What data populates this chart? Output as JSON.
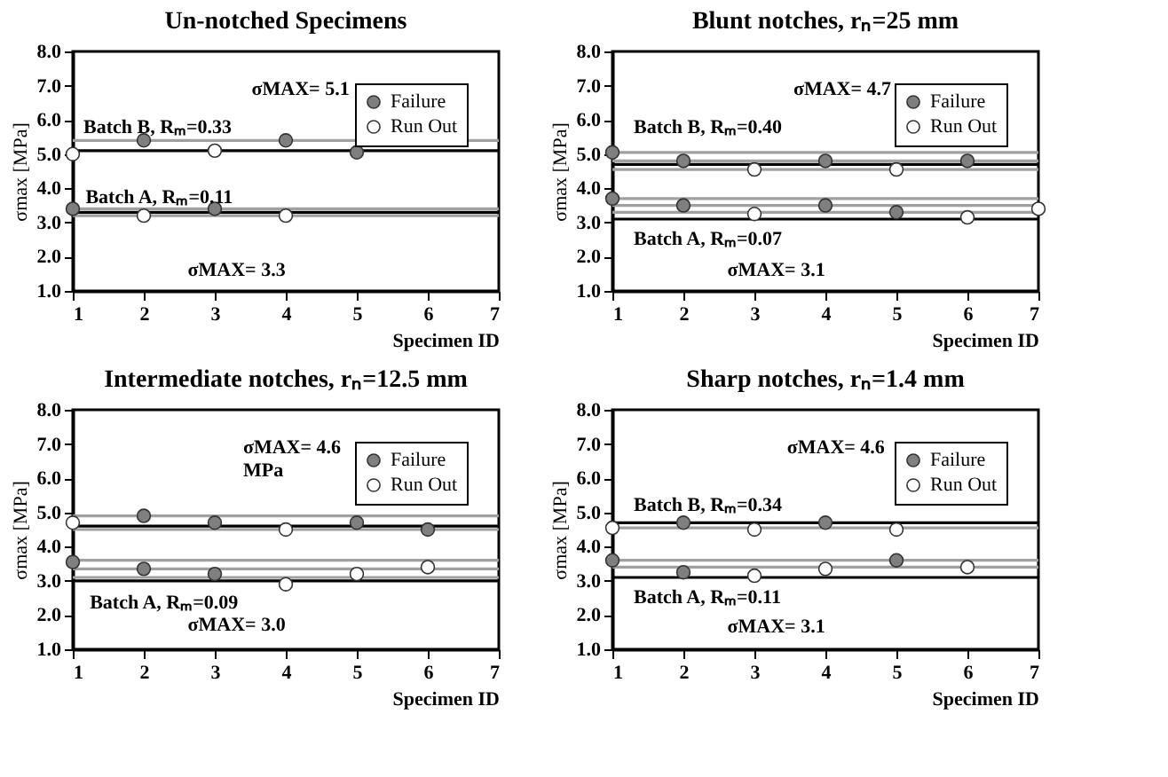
{
  "chart_data": [
    {
      "type": "scatter",
      "title": "Un-notched Specimens",
      "xlabel": "Specimen ID",
      "ylabel": "σmax [MPa]",
      "xlim": [
        1,
        7
      ],
      "xticks": [
        1,
        2,
        3,
        4,
        5,
        6,
        7
      ],
      "ylim": [
        1,
        8
      ],
      "yticks": [
        {
          "value": 1,
          "label": "1.0"
        },
        {
          "value": 2,
          "label": "2.0"
        },
        {
          "value": 3,
          "label": "3.0"
        },
        {
          "value": 4,
          "label": "4.0"
        },
        {
          "value": 5,
          "label": "5.0"
        },
        {
          "value": 6,
          "label": "6.0"
        },
        {
          "value": 7,
          "label": "7.0"
        },
        {
          "value": 8,
          "label": "8.0"
        }
      ],
      "grid": false,
      "legend": "top right",
      "marker": "circle",
      "series": [
        {
          "name": "Failure",
          "color": "#7f7f7f",
          "x": [
            2,
            4,
            5,
            1,
            3
          ],
          "values": [
            5.4,
            5.4,
            5.05,
            3.4,
            3.4
          ]
        },
        {
          "name": "Run Out",
          "color": "#ffffff",
          "x": [
            1,
            3,
            2,
            4
          ],
          "values": [
            5.0,
            5.1,
            3.2,
            3.2
          ]
        }
      ],
      "ref_lines": [
        {
          "axis": "y",
          "value": 5.4,
          "color": "#a0a0a0"
        },
        {
          "axis": "y",
          "value": 5.1,
          "color": "#000000"
        },
        {
          "axis": "y",
          "value": 3.4,
          "color": "#a0a0a0"
        },
        {
          "axis": "y",
          "value": 3.2,
          "color": "#a0a0a0"
        },
        {
          "axis": "y",
          "value": 3.3,
          "color": "#000000"
        }
      ],
      "annotations": [
        "Batch B, Rₘ=0.33",
        "σMAX= 5.1",
        "Batch A, Rₘ=0.11",
        "σMAX= 3.3"
      ]
    },
    {
      "type": "scatter",
      "title": "Blunt notches, rₙ=25 mm",
      "xlabel": "Specimen ID",
      "ylabel": "σmax [MPa]",
      "xlim": [
        1,
        7
      ],
      "xticks": [
        1,
        2,
        3,
        4,
        5,
        6,
        7
      ],
      "ylim": [
        1,
        8
      ],
      "yticks": [
        {
          "value": 1,
          "label": "1.0"
        },
        {
          "value": 2,
          "label": "2.0"
        },
        {
          "value": 3,
          "label": "3.0"
        },
        {
          "value": 4,
          "label": "4.0"
        },
        {
          "value": 5,
          "label": "5.0"
        },
        {
          "value": 6,
          "label": "6.0"
        },
        {
          "value": 7,
          "label": "7.0"
        },
        {
          "value": 8,
          "label": "8.0"
        }
      ],
      "grid": false,
      "legend": "top right",
      "marker": "circle",
      "series": [
        {
          "name": "Failure",
          "color": "#7f7f7f",
          "x": [
            1,
            2,
            4,
            6,
            1,
            2,
            4,
            5
          ],
          "values": [
            5.05,
            4.8,
            4.8,
            4.8,
            3.7,
            3.5,
            3.5,
            3.3
          ]
        },
        {
          "name": "Run Out",
          "color": "#ffffff",
          "x": [
            3,
            5,
            3,
            6,
            7
          ],
          "values": [
            4.55,
            4.55,
            3.25,
            3.15,
            3.4
          ]
        }
      ],
      "ref_lines": [
        {
          "axis": "y",
          "value": 5.05,
          "color": "#a0a0a0"
        },
        {
          "axis": "y",
          "value": 4.8,
          "color": "#a0a0a0"
        },
        {
          "axis": "y",
          "value": 4.55,
          "color": "#a0a0a0"
        },
        {
          "axis": "y",
          "value": 4.7,
          "color": "#000000"
        },
        {
          "axis": "y",
          "value": 3.7,
          "color": "#a0a0a0"
        },
        {
          "axis": "y",
          "value": 3.5,
          "color": "#a0a0a0"
        },
        {
          "axis": "y",
          "value": 3.3,
          "color": "#a0a0a0"
        },
        {
          "axis": "y",
          "value": 3.1,
          "color": "#000000"
        }
      ],
      "annotations": [
        "Batch B, Rₘ=0.40",
        "σMAX= 4.7",
        "Batch A, Rₘ=0.07",
        "σMAX= 3.1"
      ]
    },
    {
      "type": "scatter",
      "title": "Intermediate notches, rₙ=12.5 mm",
      "xlabel": "Specimen ID",
      "ylabel": "σmax [MPa]",
      "xlim": [
        1,
        7
      ],
      "xticks": [
        1,
        2,
        3,
        4,
        5,
        6,
        7
      ],
      "ylim": [
        1,
        8
      ],
      "yticks": [
        {
          "value": 1,
          "label": "1.0"
        },
        {
          "value": 2,
          "label": "2.0"
        },
        {
          "value": 3,
          "label": "3.0"
        },
        {
          "value": 4,
          "label": "4.0"
        },
        {
          "value": 5,
          "label": "5.0"
        },
        {
          "value": 6,
          "label": "6.0"
        },
        {
          "value": 7,
          "label": "7.0"
        },
        {
          "value": 8,
          "label": "8.0"
        }
      ],
      "grid": false,
      "legend": "top right",
      "marker": "circle",
      "series": [
        {
          "name": "Failure",
          "color": "#7f7f7f",
          "x": [
            2,
            3,
            5,
            6,
            1,
            2,
            3
          ],
          "values": [
            4.9,
            4.7,
            4.7,
            4.5,
            3.55,
            3.35,
            3.2
          ]
        },
        {
          "name": "Run Out",
          "color": "#ffffff",
          "x": [
            1,
            4,
            4,
            5,
            6
          ],
          "values": [
            4.7,
            4.5,
            2.9,
            3.2,
            3.4
          ]
        }
      ],
      "ref_lines": [
        {
          "axis": "y",
          "value": 4.9,
          "color": "#a0a0a0"
        },
        {
          "axis": "y",
          "value": 4.5,
          "color": "#a0a0a0"
        },
        {
          "axis": "y",
          "value": 4.6,
          "color": "#000000"
        },
        {
          "axis": "y",
          "value": 3.6,
          "color": "#a0a0a0"
        },
        {
          "axis": "y",
          "value": 3.35,
          "color": "#a0a0a0"
        },
        {
          "axis": "y",
          "value": 3.1,
          "color": "#a0a0a0"
        },
        {
          "axis": "y",
          "value": 3.0,
          "color": "#000000"
        }
      ],
      "annotations": [
        "σMAX= 4.6\nMPa",
        "Batch A, Rₘ=0.09",
        "σMAX= 3.0"
      ]
    },
    {
      "type": "scatter",
      "title": "Sharp notches, rₙ=1.4 mm",
      "xlabel": "Specimen ID",
      "ylabel": "σmax [MPa]",
      "xlim": [
        1,
        7
      ],
      "xticks": [
        1,
        2,
        3,
        4,
        5,
        6,
        7
      ],
      "ylim": [
        1,
        8
      ],
      "yticks": [
        {
          "value": 1,
          "label": "1.0"
        },
        {
          "value": 2,
          "label": "2.0"
        },
        {
          "value": 3,
          "label": "3.0"
        },
        {
          "value": 4,
          "label": "4.0"
        },
        {
          "value": 5,
          "label": "5.0"
        },
        {
          "value": 6,
          "label": "6.0"
        },
        {
          "value": 7,
          "label": "7.0"
        },
        {
          "value": 8,
          "label": "8.0"
        }
      ],
      "grid": false,
      "legend": "top right",
      "marker": "circle",
      "series": [
        {
          "name": "Failure",
          "color": "#7f7f7f",
          "x": [
            2,
            4,
            1,
            5,
            2
          ],
          "values": [
            4.7,
            4.7,
            3.6,
            3.6,
            3.25
          ]
        },
        {
          "name": "Run Out",
          "color": "#ffffff",
          "x": [
            1,
            3,
            5,
            3,
            4,
            6
          ],
          "values": [
            4.55,
            4.5,
            4.5,
            3.15,
            3.35,
            3.4
          ]
        }
      ],
      "ref_lines": [
        {
          "axis": "y",
          "value": 4.55,
          "color": "#a0a0a0"
        },
        {
          "axis": "y",
          "value": 4.7,
          "color": "#000000"
        },
        {
          "axis": "y",
          "value": 3.6,
          "color": "#a0a0a0"
        },
        {
          "axis": "y",
          "value": 3.4,
          "color": "#a0a0a0"
        },
        {
          "axis": "y",
          "value": 3.1,
          "color": "#000000"
        }
      ],
      "annotations": [
        "Batch B, Rₘ=0.34",
        "σMAX= 4.6",
        "Batch A, Rₘ=0.11",
        "σMAX= 3.1"
      ]
    }
  ]
}
